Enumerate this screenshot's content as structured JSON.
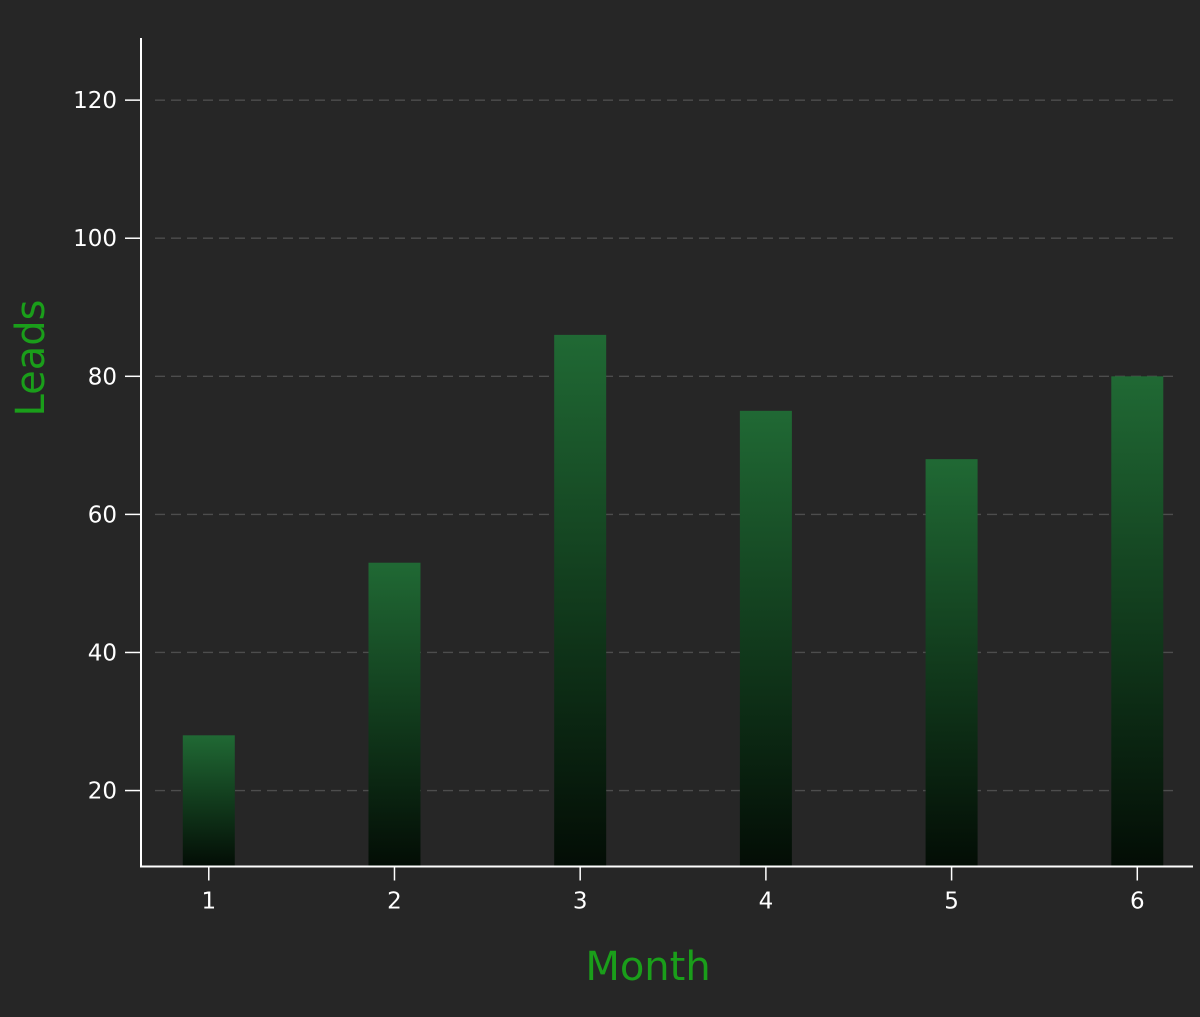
{
  "chart_data": {
    "type": "bar",
    "categories": [
      "1",
      "2",
      "3",
      "4",
      "5",
      "6"
    ],
    "values": [
      28,
      53,
      86,
      75,
      68,
      80
    ],
    "x": [
      1,
      2,
      3,
      4,
      5,
      6
    ],
    "xlabel": "Month",
    "ylabel": "Leads",
    "ylim": [
      9,
      129
    ],
    "xlim": [
      0.635,
      6.3
    ],
    "yticks": [
      20,
      40,
      60,
      80,
      100,
      120
    ],
    "grid": {
      "y": true,
      "x": false,
      "style": "dashed"
    },
    "legend": "none",
    "colors": {
      "background": "#262626",
      "bar_top": "#206934",
      "bar_bottom": "#030d05",
      "axis": "#ffffff",
      "grid": "#4d4d4d",
      "label": "#1a9e1a",
      "tick_text": "#ffffff"
    }
  }
}
